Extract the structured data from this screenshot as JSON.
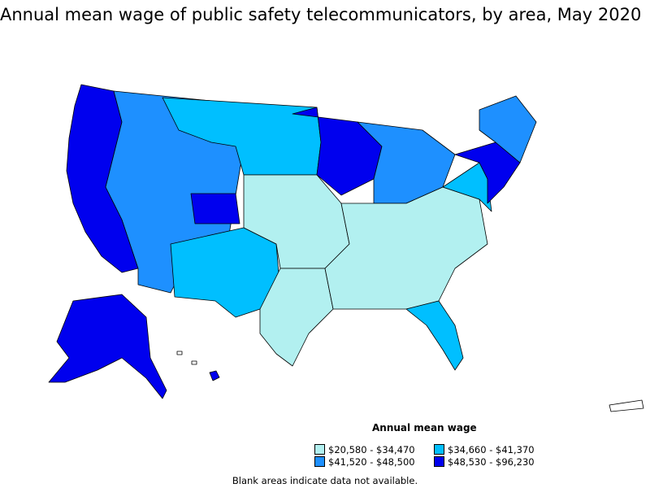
{
  "title": "Annual mean wage of public safety telecommunicators, by area, May 2020",
  "legend": {
    "title": "Annual mean wage",
    "items": [
      {
        "label": "$20,580 - $34,470",
        "color": "#b2f0f0"
      },
      {
        "label": "$34,660 - $41,370",
        "color": "#00bfff"
      },
      {
        "label": "$41,520 - $48,500",
        "color": "#1e90ff"
      },
      {
        "label": "$48,530 - $96,230",
        "color": "#0000ee"
      }
    ]
  },
  "footnote": "Blank areas indicate data not available.",
  "colors": {
    "border": "#000000",
    "blank": "#ffffff"
  }
}
